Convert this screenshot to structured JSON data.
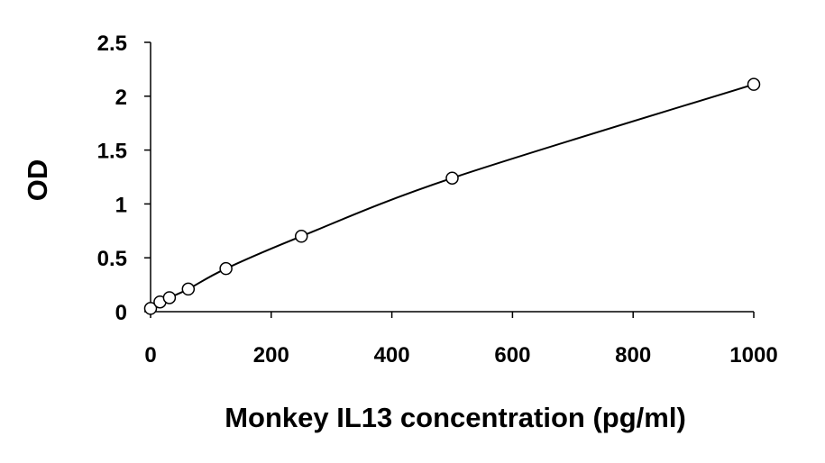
{
  "chart_data": {
    "type": "scatter",
    "x_label": "Monkey IL13 concentration (pg/ml)",
    "y_label": "OD",
    "x": [
      0,
      15.6,
      31.25,
      62.5,
      125,
      250,
      500,
      1000
    ],
    "values": [
      0.03,
      0.09,
      0.13,
      0.21,
      0.4,
      0.7,
      1.24,
      2.11
    ],
    "color": "#000000",
    "smooth_line": true,
    "xlim": [
      0,
      1000
    ],
    "xticks": [
      0,
      200,
      400,
      600,
      800,
      1000
    ],
    "ylim": [
      0,
      2.5
    ],
    "yticks": [
      0,
      0.5,
      1,
      1.5,
      2,
      2.5
    ]
  }
}
